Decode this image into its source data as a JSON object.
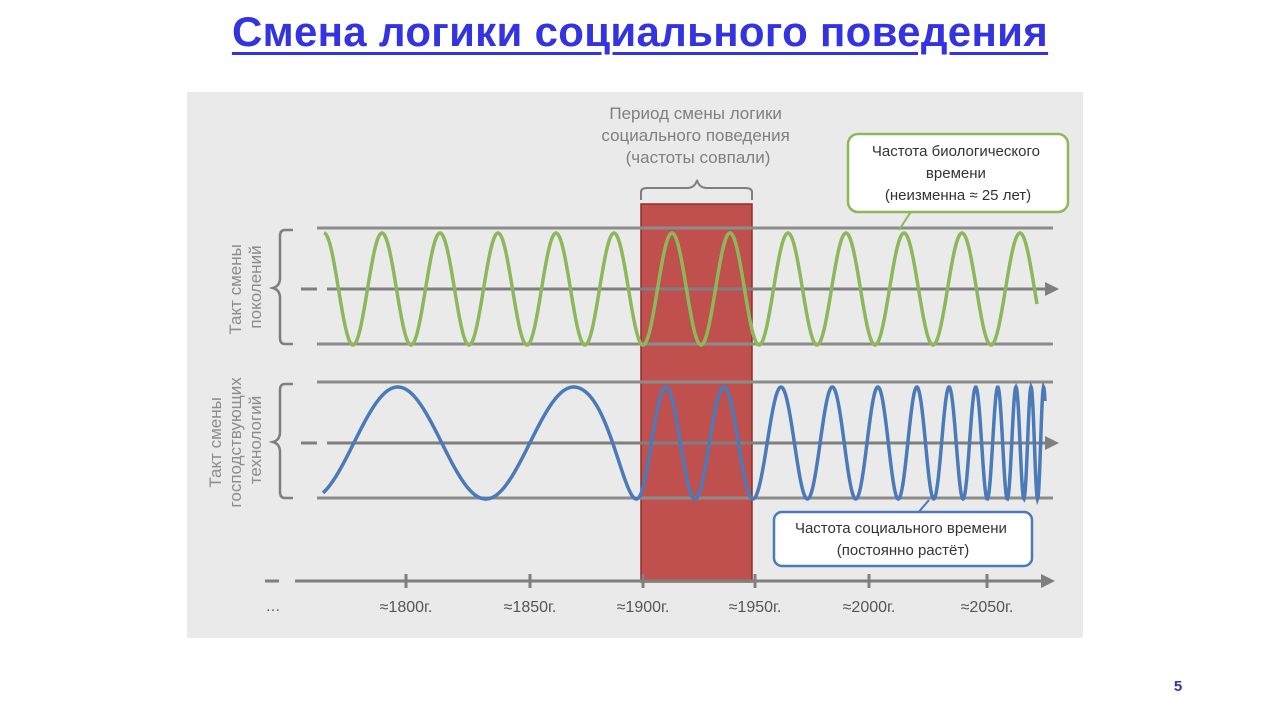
{
  "slide": {
    "title": "Смена логики социального поведения",
    "page_number": "5"
  },
  "diagram": {
    "period_label": [
      "Период смены логики",
      "социального поведения",
      "(частоты совпали)"
    ],
    "bio_callout": [
      "Частота биологического",
      "времени",
      "(неизменна ≈ 25 лет)"
    ],
    "social_callout": [
      "Частота социального времени",
      "(постоянно растёт)"
    ],
    "row1_label": [
      "Такт смены",
      "поколений"
    ],
    "row2_label": [
      "Такт смены",
      "господствующих",
      "технологий"
    ],
    "timeline_start": "…",
    "timeline_ticks": [
      "≈1800г.",
      "≈1850г.",
      "≈1900г.",
      "≈1950г.",
      "≈2000г.",
      "≈2050г."
    ]
  },
  "colors": {
    "title": "#3333e0",
    "biological_wave": "#8db85a",
    "social_wave": "#4a7ab8",
    "highlight": "#c0504d",
    "axis": "#7f7f7f",
    "background": "#eaeaea"
  }
}
